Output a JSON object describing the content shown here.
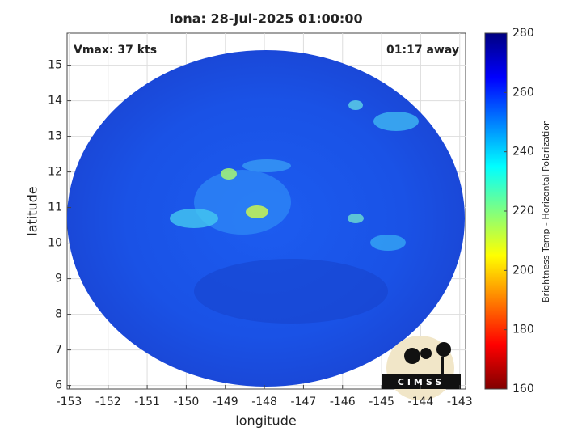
{
  "chart_data": {
    "type": "map",
    "title": "Iona: 28-Jul-2025 01:00:00",
    "xlabel": "longitude",
    "ylabel": "latitude",
    "xlim": [
      -153.05,
      -142.85
    ],
    "ylim": [
      5.9,
      15.9
    ],
    "xticks": [
      -153,
      -152,
      -151,
      -150,
      -149,
      -148,
      -147,
      -146,
      -145,
      -144,
      -143
    ],
    "yticks": [
      6,
      7,
      8,
      9,
      10,
      11,
      12,
      13,
      14,
      15
    ],
    "grid": true,
    "annotations": [
      {
        "text": "Vmax: 37 kts",
        "corner": "upper left"
      },
      {
        "text": "01:17 away",
        "corner": "upper right"
      }
    ],
    "colorbar": {
      "label": "Brightness Temp - Horizontal Polarization",
      "colormap": "jet",
      "lim": [
        160,
        280
      ],
      "ticks": [
        160,
        180,
        200,
        220,
        240,
        260,
        280
      ]
    },
    "logo": "CIMSS"
  }
}
